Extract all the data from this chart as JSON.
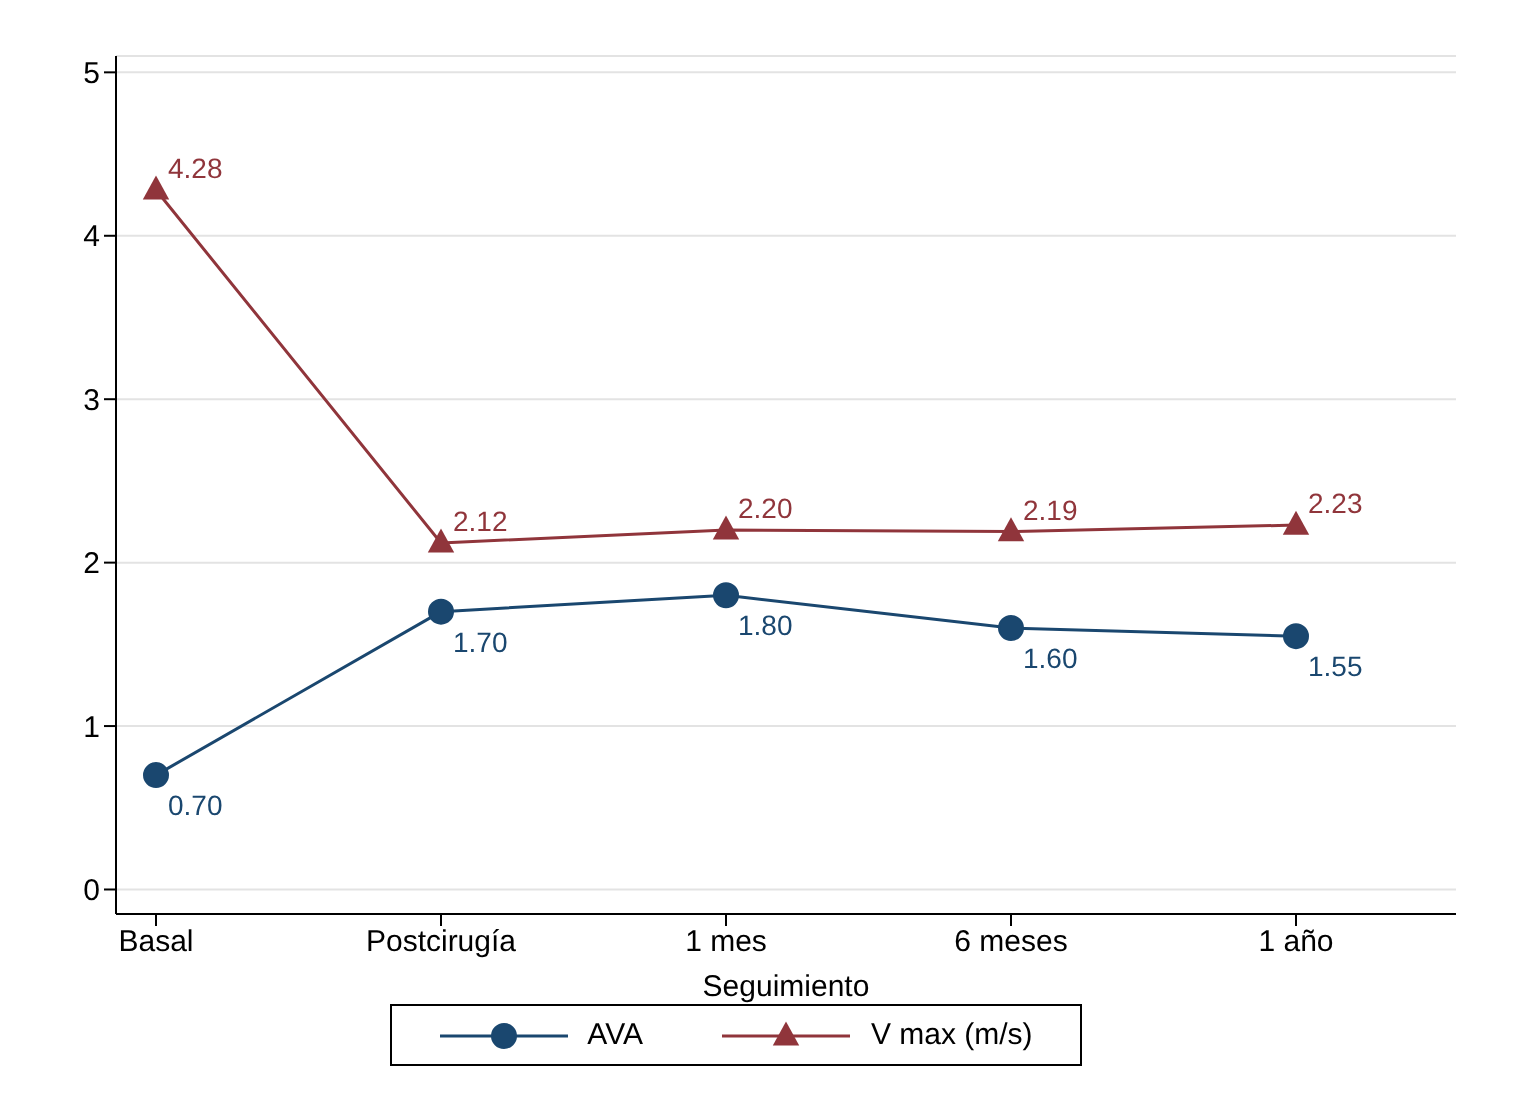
{
  "chart_data": {
    "type": "line",
    "xlabel": "Seguimiento",
    "categories": [
      "Basal",
      "Postcirugía",
      "1 mes",
      "6 meses",
      "1 año"
    ],
    "series": [
      {
        "name": "AVA",
        "color": "#1a476f",
        "marker": "circle",
        "values": [
          0.7,
          1.7,
          1.8,
          1.6,
          1.55
        ],
        "value_labels": [
          "0.70",
          "1.70",
          "1.80",
          "1.60",
          "1.55"
        ]
      },
      {
        "name": "V max (m/s)",
        "color": "#90353b",
        "marker": "triangle",
        "values": [
          4.28,
          2.12,
          2.2,
          2.19,
          2.23
        ],
        "value_labels": [
          "4.28",
          "2.12",
          "2.20",
          "2.19",
          "2.23"
        ]
      }
    ],
    "ylim": [
      -0.15,
      5.1
    ],
    "yticks": [
      0,
      1,
      2,
      3,
      4,
      5
    ],
    "grid": "y",
    "legend": "bottom"
  }
}
